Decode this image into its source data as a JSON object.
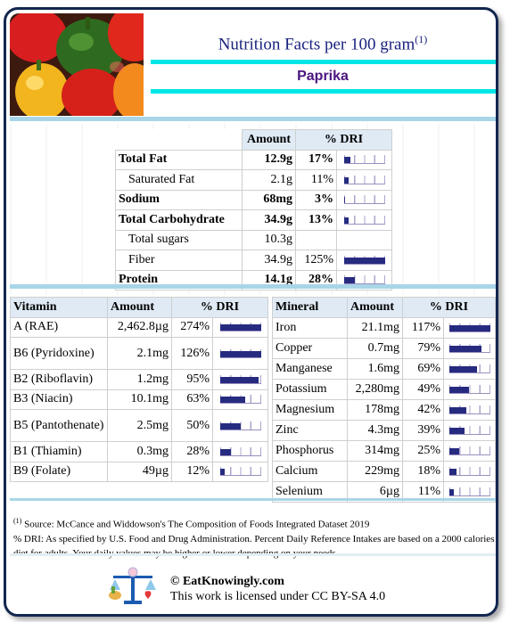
{
  "header": {
    "title": "Nutrition Facts per 100 gram",
    "title_note": "(1)",
    "food": "Paprika"
  },
  "macros": {
    "col_amount": "Amount",
    "col_dri": "% DRI",
    "rows": [
      {
        "name": "Total Fat",
        "amount": "12.9g",
        "dri": "17%",
        "pct": 17,
        "bold": true,
        "indent": false
      },
      {
        "name": "Saturated Fat",
        "amount": "2.1g",
        "dri": "11%",
        "pct": 11,
        "bold": false,
        "indent": true
      },
      {
        "name": "Sodium",
        "amount": "68mg",
        "dri": "3%",
        "pct": 3,
        "bold": true,
        "indent": false
      },
      {
        "name": "Total Carbohydrate",
        "amount": "34.9g",
        "dri": "13%",
        "pct": 13,
        "bold": true,
        "indent": false
      },
      {
        "name": "Total sugars",
        "amount": "10.3g",
        "dri": "",
        "pct": null,
        "bold": false,
        "indent": true
      },
      {
        "name": "Fiber",
        "amount": "34.9g",
        "dri": "125%",
        "pct": 125,
        "bold": false,
        "indent": true
      },
      {
        "name": "Protein",
        "amount": "14.1g",
        "dri": "28%",
        "pct": 28,
        "bold": true,
        "indent": false
      }
    ]
  },
  "vitamins": {
    "col_name": "Vitamin",
    "col_amount": "Amount",
    "col_dri": "% DRI",
    "rows": [
      {
        "name": "A (RAE)",
        "amount": "2,462.8µg",
        "dri": "274%",
        "pct": 274
      },
      {
        "name": "B6 (Pyridoxine)",
        "amount": "2.1mg",
        "dri": "126%",
        "pct": 126
      },
      {
        "name": "B2 (Riboflavin)",
        "amount": "1.2mg",
        "dri": "95%",
        "pct": 95
      },
      {
        "name": "B3 (Niacin)",
        "amount": "10.1mg",
        "dri": "63%",
        "pct": 63
      },
      {
        "name": "B5 (Pantothenate)",
        "amount": "2.5mg",
        "dri": "50%",
        "pct": 50
      },
      {
        "name": "B1 (Thiamin)",
        "amount": "0.3mg",
        "dri": "28%",
        "pct": 28
      },
      {
        "name": "B9 (Folate)",
        "amount": "49µg",
        "dri": "12%",
        "pct": 12
      }
    ]
  },
  "minerals": {
    "col_name": "Mineral",
    "col_amount": "Amount",
    "col_dri": "% DRI",
    "rows": [
      {
        "name": "Iron",
        "amount": "21.1mg",
        "dri": "117%",
        "pct": 117
      },
      {
        "name": "Copper",
        "amount": "0.7mg",
        "dri": "79%",
        "pct": 79
      },
      {
        "name": "Manganese",
        "amount": "1.6mg",
        "dri": "69%",
        "pct": 69
      },
      {
        "name": "Potassium",
        "amount": "2,280mg",
        "dri": "49%",
        "pct": 49
      },
      {
        "name": "Magnesium",
        "amount": "178mg",
        "dri": "42%",
        "pct": 42
      },
      {
        "name": "Zinc",
        "amount": "4.3mg",
        "dri": "39%",
        "pct": 39
      },
      {
        "name": "Phosphorus",
        "amount": "314mg",
        "dri": "25%",
        "pct": 25
      },
      {
        "name": "Calcium",
        "amount": "229mg",
        "dri": "18%",
        "pct": 18
      },
      {
        "name": "Selenium",
        "amount": "6µg",
        "dri": "11%",
        "pct": 11
      }
    ]
  },
  "footer": {
    "source_note": "(1)",
    "source": " Source: McCance and Widdowson's The Composition of Foods Integrated Dataset 2019",
    "dri_note": "% DRI: As specified by U.S. Food and Drug Administration. Percent Daily Reference Intakes are based on a 2000 calories diet for adults. Your daily values may be higher or lower depending on your needs.",
    "copyright": "© EatKnowingly.com",
    "license": "This work is licensed under CC BY-SA 4.0"
  },
  "colors": {
    "border": "#13264f",
    "title": "#1a237e",
    "food": "#4b1480",
    "accent_bar": "#00e6e6",
    "separator": "#a9d5e8",
    "header_cell": "#dfeaf5",
    "dri_bar": "#262b80"
  },
  "icons": {
    "photo": "paprika-peppers-photo",
    "logo": "balance-scale-logo"
  }
}
